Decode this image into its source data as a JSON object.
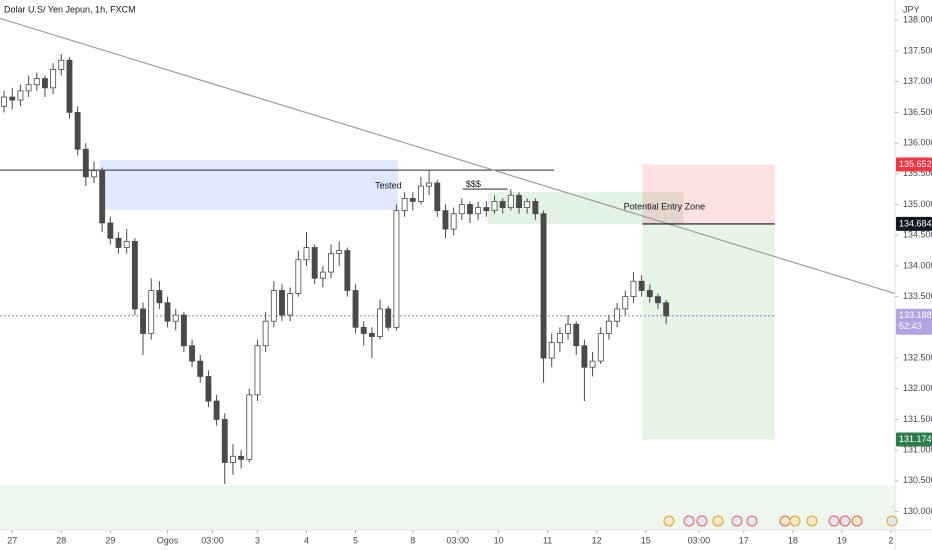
{
  "chart_data": {
    "type": "candlestick",
    "title": "Dolar U.S/ Yen Jepun, 1h, FXCM",
    "currency": "JPY",
    "up_color": "#ffffff",
    "down_color": "#4a4a4a",
    "wick_color": "#4a4a4a",
    "candles": [
      [
        136.6,
        136.85,
        136.5,
        136.75
      ],
      [
        136.75,
        136.9,
        136.55,
        136.7
      ],
      [
        136.7,
        136.95,
        136.6,
        136.85
      ],
      [
        136.85,
        137.1,
        136.75,
        136.95
      ],
      [
        136.95,
        137.15,
        136.85,
        137.05
      ],
      [
        137.05,
        137.1,
        136.75,
        136.9
      ],
      [
        136.9,
        137.3,
        136.8,
        137.2
      ],
      [
        137.2,
        137.45,
        137.1,
        137.35
      ],
      [
        137.35,
        137.4,
        136.4,
        136.5
      ],
      [
        136.5,
        136.6,
        135.8,
        135.9
      ],
      [
        135.9,
        136.0,
        135.3,
        135.45
      ],
      [
        135.45,
        135.7,
        135.35,
        135.55
      ],
      [
        135.55,
        135.6,
        134.55,
        134.7
      ],
      [
        134.7,
        134.8,
        134.35,
        134.45
      ],
      [
        134.45,
        134.55,
        134.2,
        134.3
      ],
      [
        134.3,
        134.6,
        134.2,
        134.4
      ],
      [
        134.4,
        134.45,
        133.2,
        133.3
      ],
      [
        133.3,
        133.4,
        132.55,
        132.9
      ],
      [
        132.9,
        133.8,
        132.8,
        133.6
      ],
      [
        133.6,
        133.75,
        133.3,
        133.4
      ],
      [
        133.4,
        133.5,
        133.0,
        133.1
      ],
      [
        133.1,
        133.3,
        132.95,
        133.2
      ],
      [
        133.2,
        133.25,
        132.6,
        132.7
      ],
      [
        132.7,
        132.8,
        132.35,
        132.45
      ],
      [
        132.45,
        132.55,
        132.1,
        132.2
      ],
      [
        132.2,
        132.3,
        131.7,
        131.8
      ],
      [
        131.8,
        131.9,
        131.4,
        131.5
      ],
      [
        131.5,
        131.6,
        130.45,
        130.8
      ],
      [
        130.8,
        131.1,
        130.6,
        130.9
      ],
      [
        130.9,
        131.0,
        130.7,
        130.85
      ],
      [
        130.85,
        132.0,
        130.8,
        131.9
      ],
      [
        131.9,
        132.8,
        131.8,
        132.7
      ],
      [
        132.7,
        133.25,
        132.6,
        133.1
      ],
      [
        133.1,
        133.75,
        133.0,
        133.6
      ],
      [
        133.6,
        133.7,
        133.1,
        133.2
      ],
      [
        133.2,
        133.65,
        133.1,
        133.55
      ],
      [
        133.55,
        134.25,
        133.5,
        134.1
      ],
      [
        134.1,
        134.55,
        134.0,
        134.3
      ],
      [
        134.3,
        134.35,
        133.7,
        133.8
      ],
      [
        133.8,
        134.0,
        133.65,
        133.9
      ],
      [
        133.9,
        134.35,
        133.8,
        134.2
      ],
      [
        134.2,
        134.4,
        134.0,
        134.25
      ],
      [
        134.25,
        134.3,
        133.5,
        133.6
      ],
      [
        133.6,
        133.7,
        132.9,
        133.0
      ],
      [
        133.0,
        133.1,
        132.7,
        132.9
      ],
      [
        132.9,
        133.0,
        132.5,
        132.85
      ],
      [
        132.85,
        133.45,
        132.8,
        133.3
      ],
      [
        133.3,
        133.35,
        132.95,
        133.0
      ],
      [
        133.0,
        135.0,
        132.95,
        134.9
      ],
      [
        134.9,
        135.2,
        134.8,
        135.1
      ],
      [
        135.1,
        135.2,
        134.9,
        135.05
      ],
      [
        135.05,
        135.45,
        135.0,
        135.3
      ],
      [
        135.3,
        135.55,
        135.15,
        135.35
      ],
      [
        135.35,
        135.4,
        134.8,
        134.9
      ],
      [
        134.9,
        135.0,
        134.45,
        134.6
      ],
      [
        134.6,
        134.95,
        134.5,
        134.85
      ],
      [
        134.85,
        135.1,
        134.75,
        135.0
      ],
      [
        135.0,
        135.05,
        134.7,
        134.85
      ],
      [
        134.85,
        135.05,
        134.75,
        134.95
      ],
      [
        134.95,
        135.05,
        134.8,
        134.9
      ],
      [
        134.9,
        135.15,
        134.85,
        135.05
      ],
      [
        135.05,
        135.1,
        134.85,
        134.95
      ],
      [
        134.95,
        135.25,
        134.9,
        135.15
      ],
      [
        135.15,
        135.2,
        134.85,
        134.95
      ],
      [
        134.95,
        135.1,
        134.85,
        135.05
      ],
      [
        135.05,
        135.1,
        134.75,
        134.85
      ],
      [
        134.85,
        134.9,
        132.1,
        132.5
      ],
      [
        132.5,
        132.9,
        132.35,
        132.75
      ],
      [
        132.75,
        133.0,
        132.6,
        132.9
      ],
      [
        132.9,
        133.2,
        132.8,
        133.05
      ],
      [
        133.05,
        133.1,
        132.55,
        132.7
      ],
      [
        132.7,
        132.8,
        131.8,
        132.35
      ],
      [
        132.35,
        132.6,
        132.2,
        132.45
      ],
      [
        132.45,
        133.0,
        132.4,
        132.9
      ],
      [
        132.9,
        133.2,
        132.8,
        133.1
      ],
      [
        133.1,
        133.4,
        133.0,
        133.3
      ],
      [
        133.3,
        133.6,
        133.2,
        133.5
      ],
      [
        133.5,
        133.9,
        133.4,
        133.75
      ],
      [
        133.75,
        133.85,
        133.5,
        133.6
      ],
      [
        133.6,
        133.7,
        133.4,
        133.5
      ],
      [
        133.5,
        133.55,
        133.3,
        133.4
      ],
      [
        133.4,
        133.45,
        133.05,
        133.188
      ]
    ],
    "xlim": [
      -0.5,
      109
    ],
    "xticks": [
      {
        "value": 1,
        "label": "27"
      },
      {
        "value": 7,
        "label": "28"
      },
      {
        "value": 13,
        "label": "29"
      },
      {
        "value": 20,
        "label": "Ogos"
      },
      {
        "value": 25.5,
        "label": "03:00"
      },
      {
        "value": 31,
        "label": "3"
      },
      {
        "value": 37,
        "label": "4"
      },
      {
        "value": 43,
        "label": "5"
      },
      {
        "value": 50,
        "label": "8"
      },
      {
        "value": 55.5,
        "label": "03:00"
      },
      {
        "value": 60.5,
        "label": "10"
      },
      {
        "value": 66.5,
        "label": "11"
      },
      {
        "value": 72.5,
        "label": "12"
      },
      {
        "value": 78.5,
        "label": "15"
      },
      {
        "value": 85,
        "label": "03:00"
      },
      {
        "value": 90.5,
        "label": "17"
      },
      {
        "value": 96.5,
        "label": "18"
      },
      {
        "value": 102.5,
        "label": "19"
      },
      {
        "value": 108.5,
        "label": "2"
      }
    ],
    "ylim": [
      129.7,
      138.33
    ],
    "yticks": [
      {
        "value": 130,
        "label": "130.000"
      },
      {
        "value": 130.5,
        "label": "130.500"
      },
      {
        "value": 131,
        "label": "131.000"
      },
      {
        "value": 131.5,
        "label": "131.500"
      },
      {
        "value": 132,
        "label": "132.000"
      },
      {
        "value": 132.5,
        "label": "132.500"
      },
      {
        "value": 133.5,
        "label": "133.500"
      },
      {
        "value": 134,
        "label": "134.000"
      },
      {
        "value": 134.5,
        "label": "134.500"
      },
      {
        "value": 135,
        "label": "135.000"
      },
      {
        "value": 135.5,
        "label": "135.500"
      },
      {
        "value": 136,
        "label": "136.000"
      },
      {
        "value": 136.5,
        "label": "136.500"
      },
      {
        "value": 137,
        "label": "137.000"
      },
      {
        "value": 137.5,
        "label": "137.500"
      },
      {
        "value": 138,
        "label": "138.000"
      }
    ],
    "rectangles": [
      {
        "x": [
          11.7,
          48.2
        ],
        "y": [
          134.91,
          135.72
        ],
        "color": "rgba(41,98,255,0.14)"
      },
      {
        "x": [
          59.2,
          83.1
        ],
        "y": [
          134.68,
          135.2
        ],
        "color": "rgba(76,175,80,0.16)"
      },
      {
        "x": [
          78.1,
          94.3
        ],
        "y": [
          134.684,
          135.652
        ],
        "color": "rgba(242,54,69,0.15)"
      },
      {
        "x": [
          78.1,
          94.3
        ],
        "y": [
          131.174,
          134.684
        ],
        "color": "rgba(76,175,80,0.14)"
      },
      {
        "x": [
          -0.5,
          109
        ],
        "y": [
          129.7,
          130.42
        ],
        "color": "rgba(76,175,80,0.10)"
      }
    ],
    "lines": [
      {
        "x": [
          -0.5,
          67.3
        ],
        "y": [
          135.56,
          135.56
        ],
        "color": "#555555",
        "dash": false
      },
      {
        "x": [
          -0.5,
          109
        ],
        "y": [
          138.03,
          133.55
        ],
        "color": "#9e9e9e",
        "dash": false
      },
      {
        "x": [
          56.1,
          61.6
        ],
        "y": [
          135.25,
          135.25
        ],
        "color": "#555555",
        "dash": false
      },
      {
        "x": [
          78.1,
          94.3
        ],
        "y": [
          134.684,
          134.684
        ],
        "color": "#131722",
        "dash": false
      },
      {
        "x": [
          -0.5,
          94.3
        ],
        "y": [
          133.188,
          133.188
        ],
        "color": "#9c8ad6",
        "dash": true
      }
    ],
    "annotations": [
      {
        "text": "Tested",
        "x": 45.4,
        "y": 135.3
      },
      {
        "text": "$$$",
        "x": 56.5,
        "y": 135.32
      },
      {
        "text": "Potential Entry Zone",
        "x": 75.8,
        "y": 134.96
      }
    ],
    "price_labels": [
      {
        "value": 135.652,
        "color": "#f23645"
      },
      {
        "value": 134.684,
        "color": "#131722"
      },
      {
        "value": 133.188,
        "color": "#b2a4e0",
        "countdown": "52:43"
      },
      {
        "value": 131.174,
        "color": "#2e7d4f"
      }
    ]
  }
}
